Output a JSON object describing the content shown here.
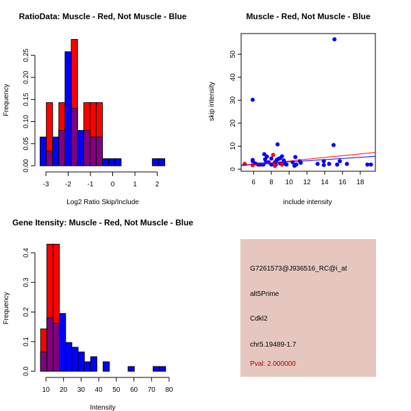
{
  "chart_data": [
    {
      "type": "bar",
      "title": "RatioData: Muscle - Red, Not Muscle - Blue",
      "xlabel": "Log2 Ratio Skip/Include",
      "ylabel": "Frequency",
      "bin_start": -3.26,
      "bin_width": 0.28,
      "xticks": [
        -3,
        -2,
        -1,
        0,
        1,
        2
      ],
      "yticks": [
        "0.00",
        "0.05",
        "0.10",
        "0.15",
        "0.20",
        "0.25"
      ],
      "xlim": [
        -3.45,
        2.6
      ],
      "ylim": [
        0,
        0.3
      ],
      "series": [
        {
          "name": "Not Muscle",
          "color": "#0000ff",
          "values": [
            0.065,
            0.033,
            0.065,
            0.08,
            0.258,
            0.13,
            0.08,
            0.08,
            0.065,
            0.065,
            0.016,
            0.016,
            0.016,
            0,
            0,
            0,
            0,
            0,
            0.016,
            0.016
          ]
        },
        {
          "name": "Muscle",
          "color": "#ff0000",
          "values": [
            0,
            0.143,
            0,
            0.143,
            0,
            0.286,
            0,
            0.143,
            0.143,
            0.143,
            0,
            0,
            0,
            0,
            0,
            0,
            0,
            0,
            0,
            0
          ]
        }
      ],
      "overlap_color": "#800080"
    },
    {
      "type": "scatter",
      "title": "Muscle - Red, Not Muscle - Blue",
      "xlabel": "include intensity",
      "ylabel": "skip intensity",
      "xlim": [
        4.6,
        19.7
      ],
      "ylim": [
        -0.9,
        59
      ],
      "xticks": [
        6,
        8,
        10,
        12,
        14,
        16,
        18
      ],
      "yticks": [
        0,
        10,
        20,
        30,
        40,
        50
      ],
      "series": [
        {
          "name": "Not Muscle",
          "color": "#0000ff",
          "points": [
            [
              5.9,
              30.2
            ],
            [
              15.1,
              56.5
            ],
            [
              15,
              10.5
            ],
            [
              8.7,
              10.8
            ],
            [
              5.9,
              4
            ],
            [
              5.9,
              3.5
            ],
            [
              6.2,
              2.5
            ],
            [
              6.5,
              2
            ],
            [
              6.7,
              2
            ],
            [
              6.9,
              2
            ],
            [
              7.1,
              2
            ],
            [
              7.2,
              6.5
            ],
            [
              7.3,
              4.3
            ],
            [
              7.5,
              5.5
            ],
            [
              7.4,
              3
            ],
            [
              7.7,
              3
            ],
            [
              8,
              4.6
            ],
            [
              8,
              2
            ],
            [
              8.5,
              2
            ],
            [
              8.6,
              4
            ],
            [
              8.8,
              4.5
            ],
            [
              9,
              4.8
            ],
            [
              9.2,
              5.6
            ],
            [
              9.4,
              3.8
            ],
            [
              9.5,
              2.5
            ],
            [
              9.7,
              2
            ],
            [
              10.4,
              3
            ],
            [
              10.6,
              1.5
            ],
            [
              10.7,
              5.3
            ],
            [
              10.8,
              2
            ],
            [
              11.2,
              3.5
            ],
            [
              11.3,
              2.8
            ],
            [
              13.2,
              2.3
            ],
            [
              13.9,
              3.5
            ],
            [
              13.9,
              1.8
            ],
            [
              14.5,
              2.3
            ],
            [
              15.4,
              2
            ],
            [
              15.7,
              3.5
            ],
            [
              16.5,
              2.3
            ],
            [
              18.8,
              2
            ],
            [
              19.2,
              2
            ],
            [
              8.4,
              3
            ],
            [
              9,
              2.5
            ]
          ],
          "fit": [
            [
              4.6,
              1.8
            ],
            [
              19.7,
              5.6
            ]
          ]
        },
        {
          "name": "Muscle",
          "color": "#ff0000",
          "points": [
            [
              5,
              2.3
            ],
            [
              5.9,
              1.7
            ],
            [
              8.2,
              6.2
            ],
            [
              8.4,
              1.4
            ],
            [
              9.2,
              2
            ]
          ],
          "fit": [
            [
              4.6,
              1.5
            ],
            [
              19.7,
              7.3
            ]
          ]
        }
      ]
    },
    {
      "type": "bar",
      "title": "Gene Itensity: Muscle - Red, Not Muscle - Blue",
      "xlabel": "Intensity",
      "ylabel": "Frequency",
      "bin_start": 7,
      "bin_width": 3.55,
      "xticks": [
        10,
        20,
        30,
        40,
        50,
        60,
        70,
        80
      ],
      "yticks": [
        "0.0",
        "0.1",
        "0.2",
        "0.3",
        "0.4"
      ],
      "xlim": [
        4.5,
        82
      ],
      "ylim": [
        0,
        0.45
      ],
      "series": [
        {
          "name": "Not Muscle",
          "color": "#0000ff",
          "values": [
            0.065,
            0.18,
            0.162,
            0.195,
            0.097,
            0.081,
            0.065,
            0.032,
            0.049,
            0,
            0.032,
            0,
            0,
            0,
            0.016,
            0,
            0,
            0,
            0.016,
            0.016
          ]
        },
        {
          "name": "Muscle",
          "color": "#ff0000",
          "values": [
            0.143,
            0.429,
            0.429,
            0,
            0,
            0,
            0,
            0,
            0,
            0,
            0,
            0,
            0,
            0,
            0,
            0,
            0,
            0,
            0,
            0
          ]
        }
      ],
      "overlap_color": "#800080"
    }
  ],
  "info_panel": {
    "background": "#e6c7bf",
    "probe_id": "G7261573@J936516_RC@i_at",
    "event_type": "alt5Prime",
    "gene": "Cdkl2",
    "location": "chr5.19489-1.7",
    "pval": "Pval: 2.000000",
    "pval_color": "#990000"
  }
}
